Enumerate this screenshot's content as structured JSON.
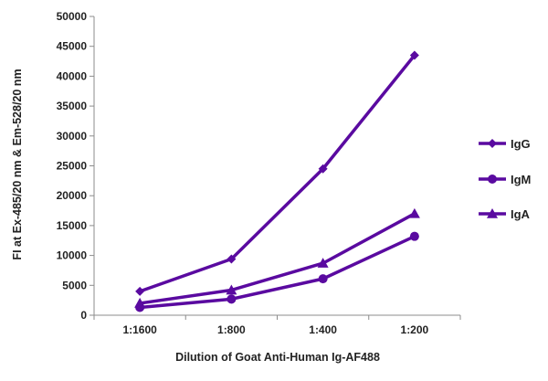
{
  "chart_data": {
    "type": "line",
    "title": "",
    "xlabel": "Dilution of Goat Anti-Human Ig-AF488",
    "ylabel": "FI at Ex-485/20 nm & Em-528/20 nm",
    "categories": [
      "1:1600",
      "1:800",
      "1:400",
      "1:200"
    ],
    "ylim": [
      0,
      50000
    ],
    "yticks": [
      0,
      5000,
      10000,
      15000,
      20000,
      25000,
      30000,
      35000,
      40000,
      45000,
      50000
    ],
    "grid": false,
    "legend_position": "right",
    "series": [
      {
        "name": "IgG",
        "marker": "diamond",
        "color": "#5a0aa0",
        "values": [
          4000,
          9400,
          24500,
          43500
        ]
      },
      {
        "name": "IgM",
        "marker": "circle",
        "color": "#5a0aa0",
        "values": [
          1300,
          2700,
          6100,
          13200
        ]
      },
      {
        "name": "IgA",
        "marker": "triangle",
        "color": "#5a0aa0",
        "values": [
          2000,
          4200,
          8700,
          17000
        ]
      }
    ]
  }
}
